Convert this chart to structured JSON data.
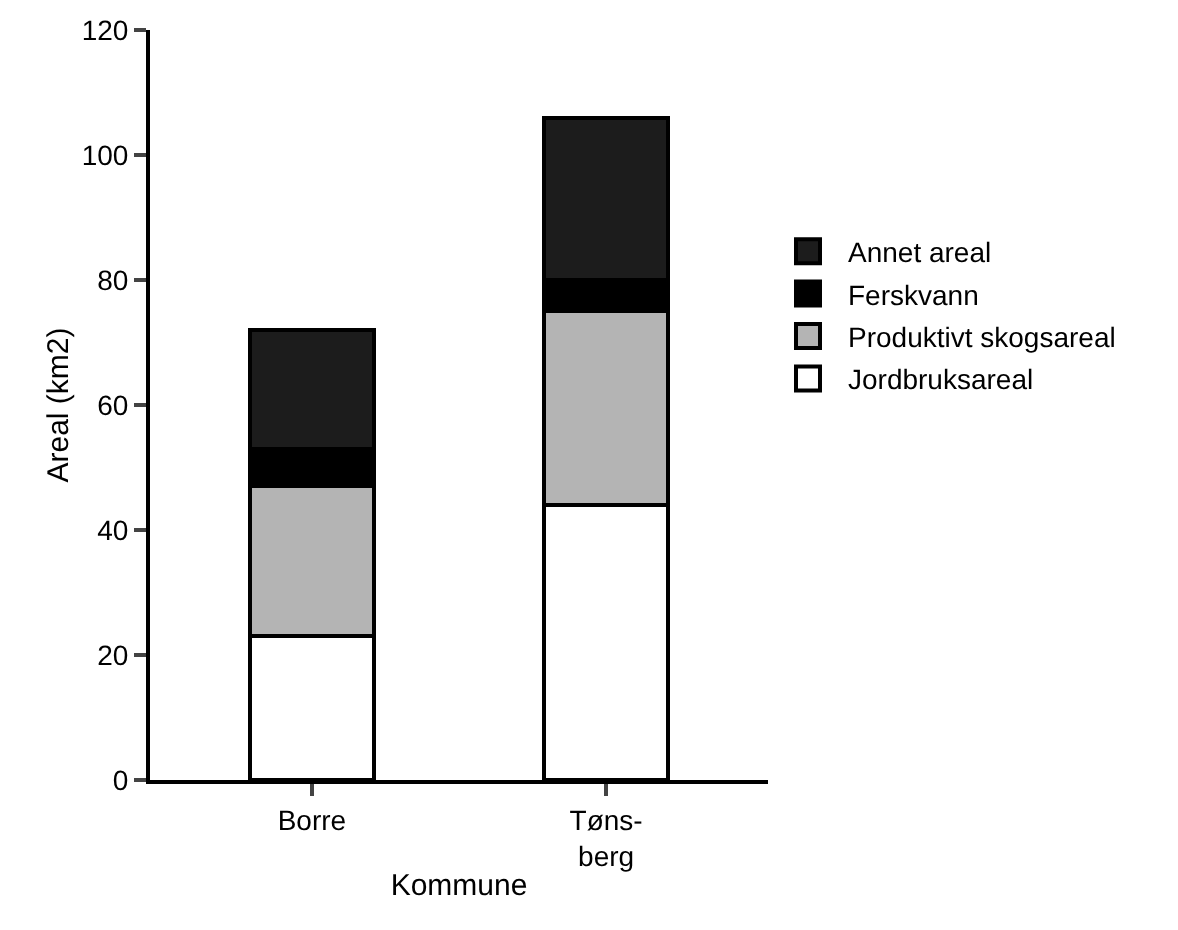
{
  "chart_data": {
    "type": "bar",
    "stacked": true,
    "xlabel": "Kommune",
    "ylabel": "Areal (km2)",
    "categories": [
      "Borre",
      "Tøns-\nberg"
    ],
    "series": [
      {
        "name": "Jordbruksareal",
        "color": "#ffffff",
        "values": [
          23,
          44
        ]
      },
      {
        "name": "Produktivt skogsareal",
        "color": "#b4b4b4",
        "values": [
          24,
          31
        ]
      },
      {
        "name": "Ferskvann",
        "color": "#000000",
        "values": [
          6,
          5
        ]
      },
      {
        "name": "Annet areal",
        "color": "#1c1c1c",
        "values": [
          19,
          26
        ]
      }
    ],
    "ylim": [
      0,
      120
    ],
    "yticks": [
      0,
      20,
      40,
      60,
      80,
      100,
      120
    ],
    "grid": false,
    "legend": "right"
  }
}
